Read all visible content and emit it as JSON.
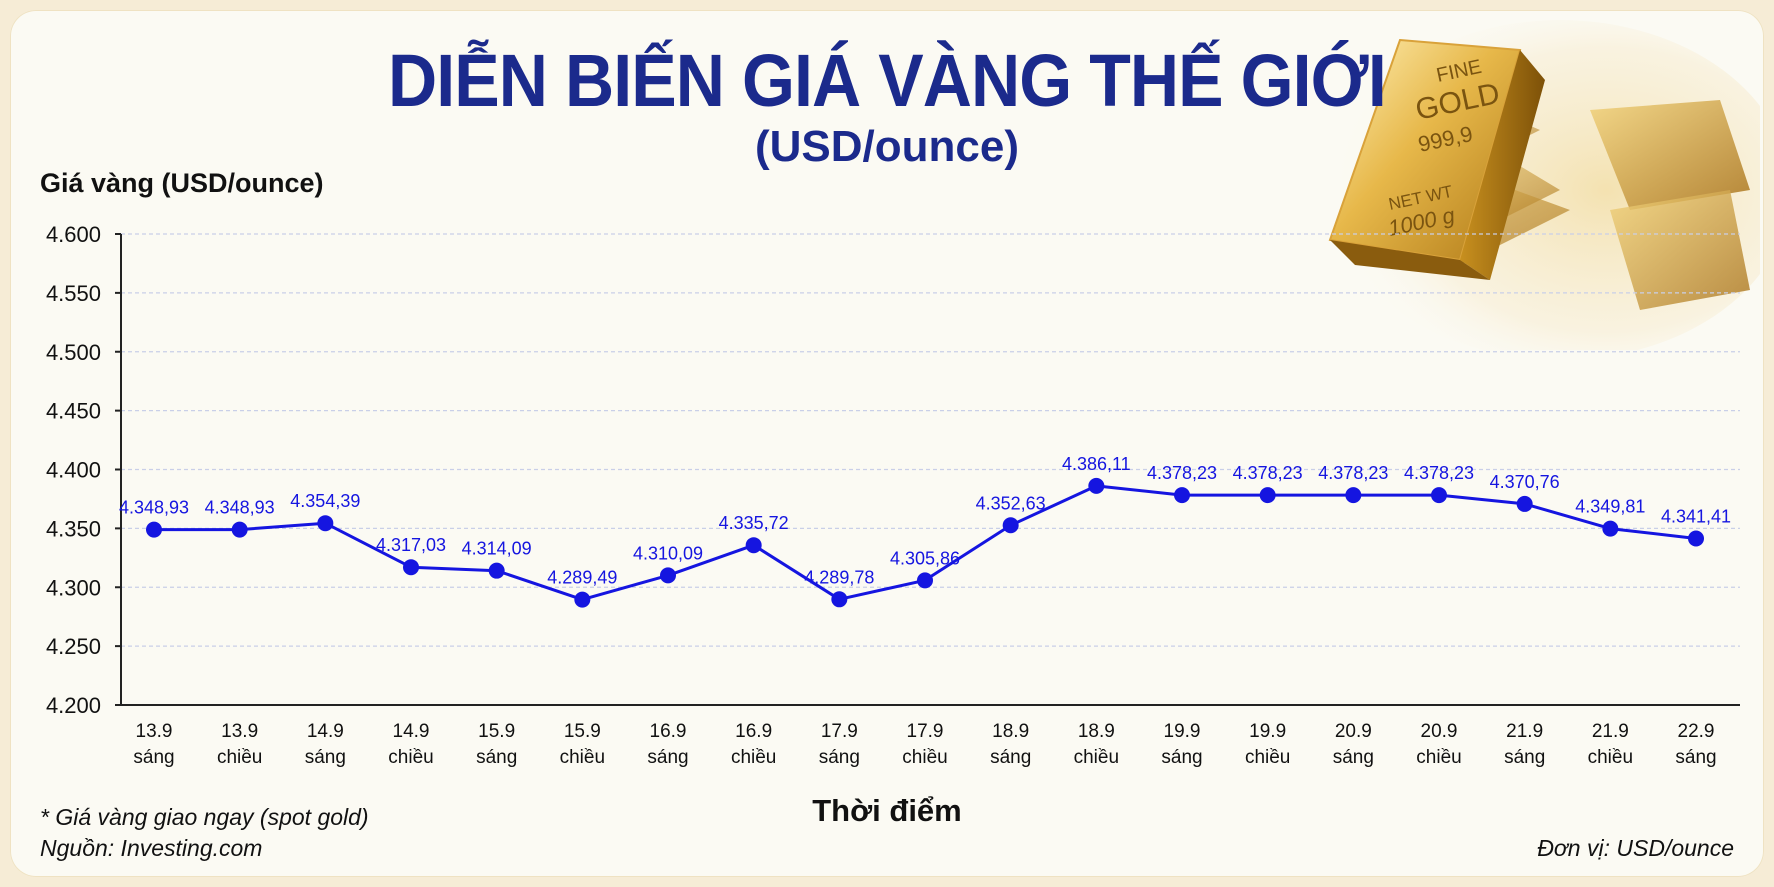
{
  "colors": {
    "title": "#1b2a8c",
    "line": "#1515e0",
    "grid": "#c9cfe8",
    "background": "#fbfaf3"
  },
  "header": {
    "title": "DIỄN BIẾN GIÁ VÀNG THẾ GIỚI",
    "subtitle": "(USD/ounce)"
  },
  "footer": {
    "note_spot": "* Giá vàng giao ngay (spot gold)",
    "source": "Nguồn: Investing.com",
    "unit": "Đơn vị: USD/ounce"
  },
  "gold_bar": {
    "line1": "FINE",
    "line2": "GOLD",
    "line3": "999,9",
    "line4": "NET WT",
    "line5": "1000 g"
  },
  "chart_data": {
    "type": "line",
    "title": "DIỄN BIẾN GIÁ VÀNG THẾ GIỚI",
    "ylabel": "Giá vàng (USD/ounce)",
    "xlabel": "Thời điểm",
    "ylim": [
      4200,
      4600
    ],
    "yticks": [
      4200,
      4250,
      4300,
      4350,
      4400,
      4450,
      4500,
      4550,
      4600
    ],
    "ytick_labels": [
      "4.200",
      "4.250",
      "4.300",
      "4.350",
      "4.400",
      "4.450",
      "4.500",
      "4.550",
      "4.600"
    ],
    "grid": true,
    "categories": [
      [
        "13.9",
        "sáng"
      ],
      [
        "13.9",
        "chiều"
      ],
      [
        "14.9",
        "sáng"
      ],
      [
        "14.9",
        "chiều"
      ],
      [
        "15.9",
        "sáng"
      ],
      [
        "15.9",
        "chiều"
      ],
      [
        "16.9",
        "sáng"
      ],
      [
        "16.9",
        "chiều"
      ],
      [
        "17.9",
        "sáng"
      ],
      [
        "17.9",
        "chiều"
      ],
      [
        "18.9",
        "sáng"
      ],
      [
        "18.9",
        "chiều"
      ],
      [
        "19.9",
        "sáng"
      ],
      [
        "19.9",
        "chiều"
      ],
      [
        "20.9",
        "sáng"
      ],
      [
        "20.9",
        "chiều"
      ],
      [
        "21.9",
        "sáng"
      ],
      [
        "21.9",
        "chiều"
      ],
      [
        "22.9",
        "sáng"
      ]
    ],
    "values": [
      4348.93,
      4348.93,
      4354.39,
      4317.03,
      4314.09,
      4289.49,
      4310.09,
      4335.72,
      4289.78,
      4305.86,
      4352.63,
      4386.11,
      4378.23,
      4378.23,
      4378.23,
      4378.23,
      4370.76,
      4349.81,
      4341.41
    ],
    "value_labels": [
      "4.348,93",
      "4.348,93",
      "4.354,39",
      "4.317,03",
      "4.314,09",
      "4.289,49",
      "4.310,09",
      "4.335,72",
      "4.289,78",
      "4.305,86",
      "4.352,63",
      "4.386,11",
      "4.378,23",
      "4.378,23",
      "4.378,23",
      "4.378,23",
      "4.370,76",
      "4.349,81",
      "4.341,41"
    ]
  }
}
